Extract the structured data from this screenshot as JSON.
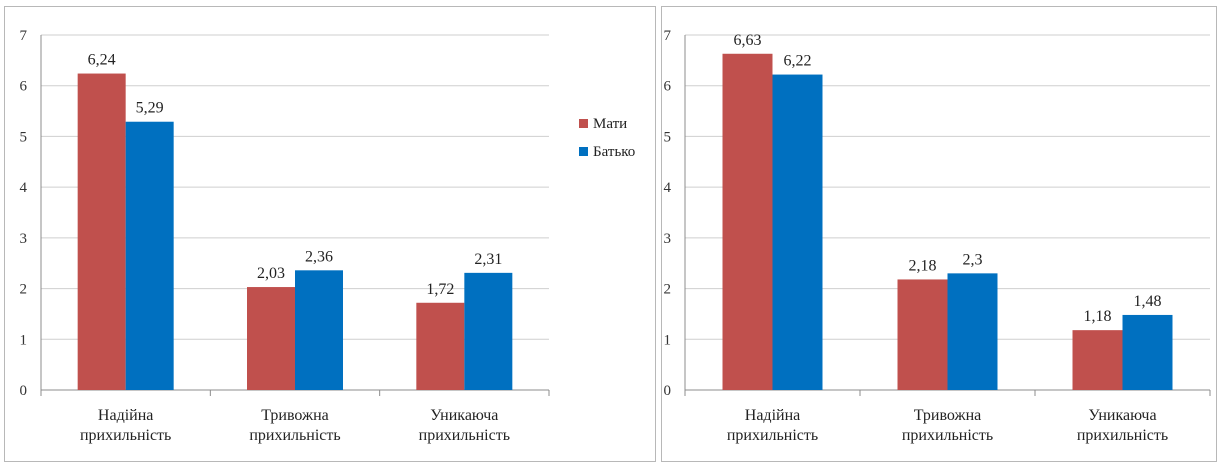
{
  "chart_data": [
    {
      "type": "bar",
      "categories": [
        "Надійна прихильність",
        "Тривожна прихильність",
        "Уникаюча прихильність"
      ],
      "series": [
        {
          "name": "Мати",
          "values": [
            6.24,
            2.03,
            1.72
          ],
          "labels": [
            "6,24",
            "2,03",
            "1,72"
          ],
          "color": "#C0504D"
        },
        {
          "name": "Батько",
          "values": [
            5.29,
            2.36,
            2.31
          ],
          "labels": [
            "5,29",
            "2,36",
            "2,31"
          ],
          "color": "#0070C0"
        }
      ],
      "title": "",
      "xlabel": "",
      "ylabel": "",
      "ylim": [
        0,
        7
      ],
      "yticks": [
        "0",
        "1",
        "2",
        "3",
        "4",
        "5",
        "6",
        "7"
      ],
      "grid": true,
      "legend": {
        "position": "right",
        "items": [
          "Мати",
          "Батько"
        ]
      }
    },
    {
      "type": "bar",
      "categories": [
        "Надійна прихильність",
        "Тривожна прихильність",
        "Уникаюча прихильність"
      ],
      "series": [
        {
          "name": "Мати",
          "values": [
            6.63,
            2.18,
            1.18
          ],
          "labels": [
            "6,63",
            "2,18",
            "1,18"
          ],
          "color": "#C0504D"
        },
        {
          "name": "Батько",
          "values": [
            6.22,
            2.3,
            1.48
          ],
          "labels": [
            "6,22",
            "2,3",
            "1,48"
          ],
          "color": "#0070C0"
        }
      ],
      "title": "",
      "xlabel": "",
      "ylabel": "",
      "ylim": [
        0,
        7
      ],
      "yticks": [
        "0",
        "1",
        "2",
        "3",
        "4",
        "5",
        "6",
        "7"
      ],
      "grid": true,
      "legend": null
    }
  ]
}
